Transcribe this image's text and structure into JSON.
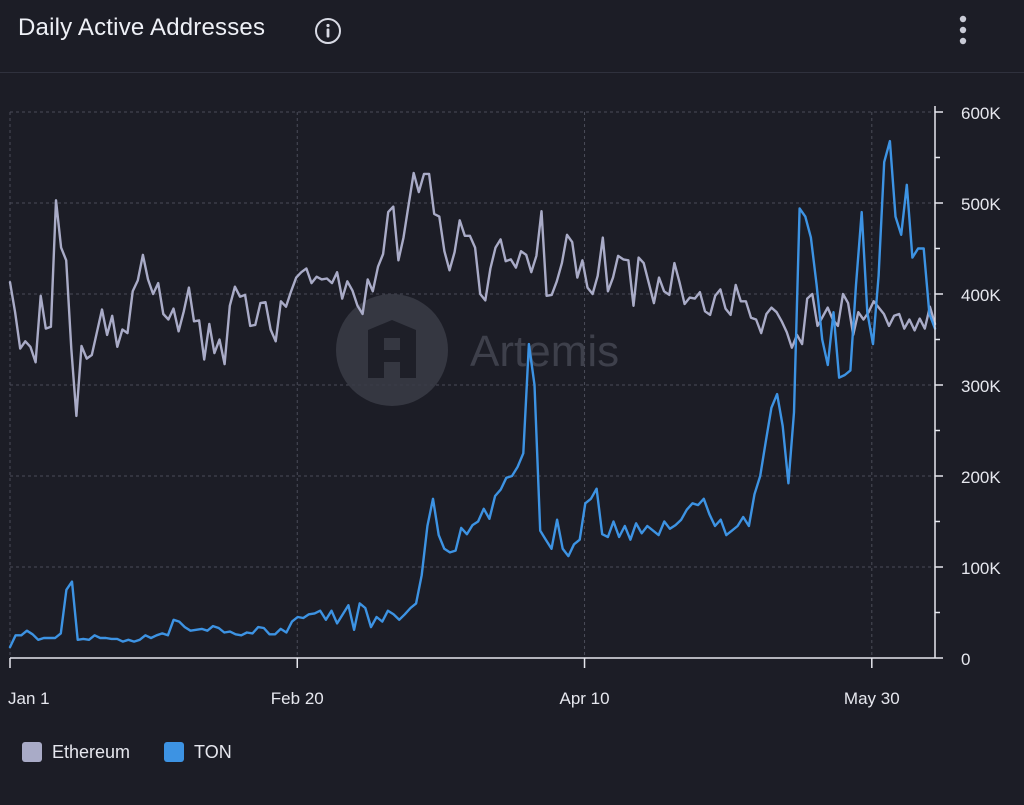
{
  "header": {
    "title": "Daily Active Addresses",
    "info_icon": "info-circle-icon",
    "menu_icon": "vertical-ellipsis-icon"
  },
  "watermark": "Artemis",
  "legend": [
    {
      "label": "Ethereum",
      "color": "#a9abc7"
    },
    {
      "label": "TON",
      "color": "#3d93e3"
    }
  ],
  "chart_data": {
    "type": "line",
    "x_tick_labels": [
      "Jan 1",
      "Feb 20",
      "Apr 10",
      "May 30"
    ],
    "y_tick_labels": [
      "0",
      "100K",
      "200K",
      "300K",
      "400K",
      "500K",
      "600K"
    ],
    "ylim": [
      0,
      600000
    ],
    "grid": true,
    "legend_position": "bottom-left",
    "x_day_range": [
      0,
      161
    ],
    "x_tick_days": [
      0,
      50,
      100,
      150
    ],
    "series": [
      {
        "name": "Ethereum",
        "color": "#a9abc7",
        "values": [
          413000,
          380000,
          340000,
          348000,
          342000,
          325000,
          398000,
          362000,
          364000,
          503000,
          451000,
          437000,
          340000,
          266000,
          343000,
          329000,
          333000,
          358000,
          383000,
          355000,
          376000,
          342000,
          361000,
          357000,
          403000,
          415000,
          443000,
          416000,
          400000,
          412000,
          378000,
          372000,
          384000,
          359000,
          381000,
          407000,
          370000,
          371000,
          328000,
          367000,
          335000,
          350000,
          323000,
          387000,
          408000,
          397000,
          399000,
          365000,
          366000,
          390000,
          391000,
          361000,
          348000,
          392000,
          386000,
          403000,
          418000,
          424000,
          428000,
          412000,
          419000,
          416000,
          417000,
          412000,
          424000,
          395000,
          414000,
          404000,
          387000,
          378000,
          416000,
          403000,
          430000,
          444000,
          490000,
          496000,
          437000,
          462000,
          498000,
          533000,
          512000,
          532000,
          532000,
          488000,
          485000,
          447000,
          426000,
          446000,
          481000,
          464000,
          464000,
          451000,
          400000,
          393000,
          428000,
          451000,
          460000,
          436000,
          438000,
          429000,
          447000,
          443000,
          424000,
          442000,
          491000,
          398000,
          399000,
          414000,
          434000,
          465000,
          457000,
          418000,
          437000,
          407000,
          400000,
          420000,
          462000,
          403000,
          418000,
          442000,
          438000,
          437000,
          387000,
          440000,
          434000,
          412000,
          390000,
          418000,
          403000,
          399000,
          434000,
          413000,
          389000,
          396000,
          395000,
          402000,
          381000,
          377000,
          398000,
          405000,
          384000,
          377000,
          410000,
          392000,
          392000,
          374000,
          372000,
          357000,
          378000,
          385000,
          380000,
          370000,
          358000,
          341000,
          355000,
          345000,
          395000,
          400000,
          365000,
          375000,
          385000,
          372000,
          365000,
          400000,
          390000,
          355000,
          380000,
          372000,
          380000,
          392000,
          385000,
          378000,
          365000,
          376000,
          378000,
          362000,
          372000,
          360000,
          373000,
          362000,
          386000,
          367000
        ],
        "note_none": ""
      },
      {
        "name": "TON",
        "color": "#3d93e3",
        "values": [
          12000,
          25000,
          25000,
          30000,
          26000,
          20000,
          22000,
          22000,
          22000,
          27000,
          75000,
          84000,
          20000,
          21000,
          20000,
          25000,
          22000,
          22000,
          21000,
          21000,
          18000,
          20000,
          18000,
          20000,
          25000,
          22000,
          25000,
          27000,
          25000,
          42000,
          40000,
          34000,
          30000,
          31000,
          32000,
          30000,
          35000,
          33000,
          28000,
          29000,
          26000,
          25000,
          28000,
          27000,
          34000,
          33000,
          26000,
          26000,
          32000,
          28000,
          40000,
          45000,
          44000,
          48000,
          49000,
          52000,
          42000,
          52000,
          38000,
          48000,
          58000,
          31000,
          60000,
          55000,
          34000,
          45000,
          40000,
          52000,
          48000,
          42000,
          48000,
          55000,
          60000,
          91000,
          145000,
          175000,
          135000,
          120000,
          116000,
          118000,
          143000,
          136000,
          146000,
          150000,
          164000,
          153000,
          178000,
          185000,
          198000,
          200000,
          210000,
          225000,
          345000,
          300000,
          140000,
          130000,
          120000,
          152000,
          120000,
          112000,
          125000,
          130000,
          170000,
          175000,
          186000,
          136000,
          133000,
          150000,
          133000,
          145000,
          130000,
          148000,
          137000,
          145000,
          140000,
          135000,
          150000,
          142000,
          146000,
          152000,
          163000,
          170000,
          168000,
          175000,
          158000,
          145000,
          152000,
          135000,
          140000,
          145000,
          155000,
          145000,
          180000,
          200000,
          238000,
          275000,
          290000,
          255000,
          192000,
          270000,
          494000,
          485000,
          462000,
          410000,
          350000,
          322000,
          380000,
          308000,
          311000,
          316000,
          410000,
          490000,
          380000,
          345000,
          420000,
          545000,
          568000,
          485000,
          465000,
          520000,
          440000,
          450000,
          450000,
          378000,
          362000
        ],
        "note_none": ""
      }
    ]
  }
}
